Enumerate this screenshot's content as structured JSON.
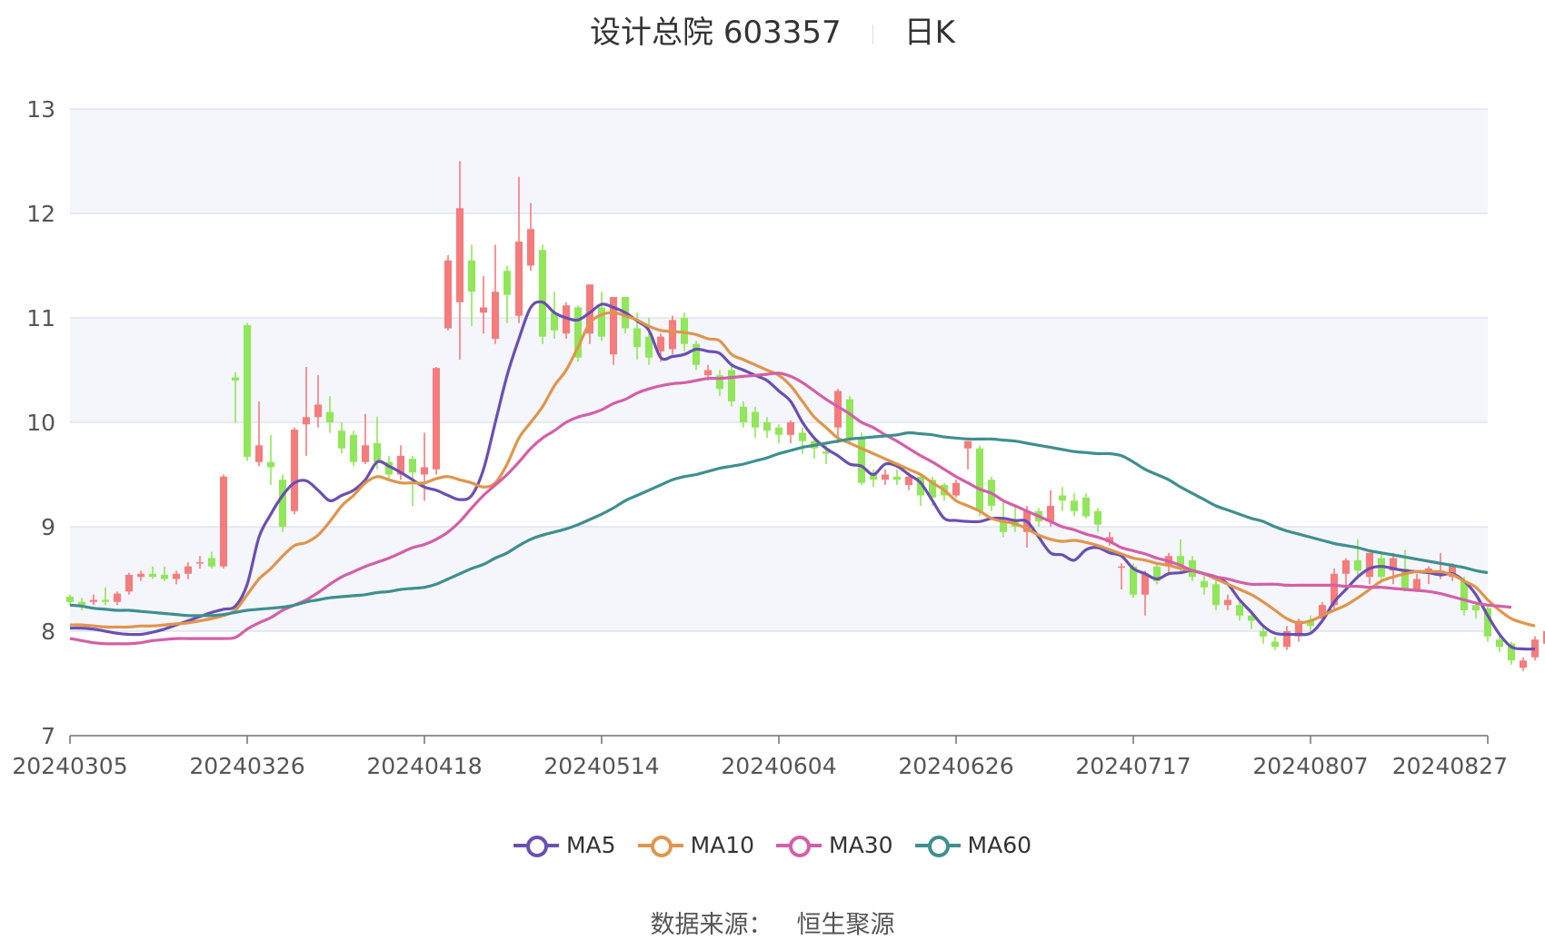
{
  "header": {
    "title": "设计总院 603357",
    "period": "日K"
  },
  "source": {
    "label": "数据来源：",
    "value": "恒生聚源"
  },
  "colors": {
    "up": "#f47c7c",
    "down": "#91e65a",
    "grid": "#dde3f0",
    "band": "#f4f6fb"
  },
  "chart_data": {
    "type": "candlestick",
    "ylim": [
      7,
      13
    ],
    "yticks": [
      "7",
      "8",
      "9",
      "10",
      "11",
      "12",
      "13"
    ],
    "xticks": [
      "20240305",
      "20240326",
      "20240418",
      "20240514",
      "20240604",
      "20240626",
      "20240717",
      "20240807",
      "20240827"
    ],
    "xtick_index": [
      0,
      15,
      30,
      45,
      60,
      75,
      90,
      105,
      120
    ],
    "count": 121,
    "candles": [
      [
        8.33,
        8.28,
        8.35,
        8.25
      ],
      [
        8.28,
        8.25,
        8.32,
        8.2
      ],
      [
        8.28,
        8.3,
        8.35,
        8.25
      ],
      [
        8.3,
        8.28,
        8.42,
        8.25
      ],
      [
        8.28,
        8.36,
        8.38,
        8.25
      ],
      [
        8.38,
        8.54,
        8.56,
        8.35
      ],
      [
        8.52,
        8.55,
        8.58,
        8.48
      ],
      [
        8.55,
        8.52,
        8.62,
        8.5
      ],
      [
        8.54,
        8.5,
        8.62,
        8.48
      ],
      [
        8.5,
        8.55,
        8.58,
        8.45
      ],
      [
        8.55,
        8.62,
        8.66,
        8.5
      ],
      [
        8.65,
        8.66,
        8.72,
        8.6
      ],
      [
        8.7,
        8.62,
        8.76,
        8.6
      ],
      [
        8.62,
        9.48,
        9.5,
        8.6
      ],
      [
        10.43,
        10.4,
        10.48,
        10.0
      ],
      [
        10.93,
        9.67,
        10.95,
        9.63
      ],
      [
        9.62,
        9.78,
        10.2,
        9.58
      ],
      [
        9.62,
        9.57,
        9.88,
        9.4
      ],
      [
        9.45,
        9.0,
        9.5,
        8.95
      ],
      [
        9.15,
        9.93,
        9.95,
        9.12
      ],
      [
        9.98,
        10.05,
        10.53,
        9.68
      ],
      [
        10.05,
        10.17,
        10.45,
        9.95
      ],
      [
        10.1,
        10.0,
        10.25,
        9.9
      ],
      [
        9.92,
        9.75,
        10.0,
        9.7
      ],
      [
        9.88,
        9.62,
        9.92,
        9.58
      ],
      [
        9.62,
        9.78,
        10.08,
        9.6
      ],
      [
        9.8,
        9.62,
        10.05,
        9.55
      ],
      [
        9.62,
        9.5,
        9.68,
        9.45
      ],
      [
        9.5,
        9.68,
        9.78,
        9.45
      ],
      [
        9.65,
        9.52,
        9.68,
        9.2
      ],
      [
        9.5,
        9.57,
        9.9,
        9.25
      ],
      [
        9.55,
        10.52,
        10.53,
        9.5
      ],
      [
        10.9,
        11.55,
        11.6,
        10.88
      ],
      [
        11.15,
        12.05,
        12.5,
        10.6
      ],
      [
        11.55,
        11.25,
        11.7,
        10.92
      ],
      [
        11.05,
        11.1,
        11.4,
        10.85
      ],
      [
        10.8,
        11.25,
        11.7,
        10.75
      ],
      [
        11.45,
        11.22,
        11.5,
        10.95
      ],
      [
        11.02,
        11.73,
        12.35,
        10.95
      ],
      [
        11.5,
        11.85,
        12.1,
        11.45
      ],
      [
        11.65,
        10.82,
        11.7,
        10.75
      ],
      [
        11.05,
        10.88,
        11.25,
        10.8
      ],
      [
        10.85,
        11.12,
        11.15,
        10.8
      ],
      [
        11.1,
        10.62,
        11.12,
        10.58
      ],
      [
        10.85,
        11.32,
        11.32,
        10.75
      ],
      [
        11.1,
        10.82,
        11.25,
        10.78
      ],
      [
        10.65,
        11.2,
        11.2,
        10.55
      ],
      [
        11.2,
        10.9,
        11.2,
        10.85
      ],
      [
        10.9,
        10.72,
        11.05,
        10.6
      ],
      [
        10.82,
        10.62,
        11.0,
        10.55
      ],
      [
        10.68,
        10.82,
        10.85,
        10.58
      ],
      [
        10.7,
        10.98,
        11.02,
        10.65
      ],
      [
        11.0,
        10.75,
        11.05,
        10.68
      ],
      [
        10.75,
        10.55,
        10.78,
        10.5
      ],
      [
        10.45,
        10.5,
        10.55,
        10.4
      ],
      [
        10.45,
        10.32,
        10.5,
        10.25
      ],
      [
        10.5,
        10.2,
        10.55,
        10.15
      ],
      [
        10.15,
        10.0,
        10.2,
        9.95
      ],
      [
        10.1,
        9.95,
        10.15,
        9.85
      ],
      [
        10.0,
        9.92,
        10.05,
        9.85
      ],
      [
        9.95,
        9.88,
        9.98,
        9.8
      ],
      [
        9.88,
        10.0,
        10.02,
        9.8
      ],
      [
        9.9,
        9.82,
        9.95,
        9.7
      ],
      [
        9.82,
        9.75,
        9.85,
        9.65
      ],
      [
        9.72,
        9.7,
        9.78,
        9.6
      ],
      [
        9.95,
        10.3,
        10.32,
        9.8
      ],
      [
        10.22,
        9.85,
        10.25,
        9.8
      ],
      [
        9.85,
        9.42,
        9.9,
        9.4
      ],
      [
        9.5,
        9.45,
        9.55,
        9.38
      ],
      [
        9.45,
        9.5,
        9.55,
        9.4
      ],
      [
        9.48,
        9.45,
        9.55,
        9.4
      ],
      [
        9.4,
        9.48,
        9.52,
        9.35
      ],
      [
        9.48,
        9.3,
        9.5,
        9.2
      ],
      [
        9.45,
        9.28,
        9.48,
        9.2
      ],
      [
        9.4,
        9.3,
        9.42,
        9.25
      ],
      [
        9.3,
        9.42,
        9.45,
        9.28
      ],
      [
        9.75,
        9.82,
        9.82,
        9.55
      ],
      [
        9.75,
        9.15,
        9.78,
        9.1
      ],
      [
        9.45,
        9.2,
        9.48,
        9.15
      ],
      [
        9.05,
        8.95,
        9.25,
        8.9
      ],
      [
        9.05,
        9.0,
        9.2,
        8.95
      ],
      [
        8.95,
        9.15,
        9.2,
        8.8
      ],
      [
        9.15,
        9.05,
        9.18,
        9.0
      ],
      [
        9.05,
        9.2,
        9.35,
        9.0
      ],
      [
        9.3,
        9.25,
        9.38,
        9.15
      ],
      [
        9.25,
        9.15,
        9.32,
        9.1
      ],
      [
        9.28,
        9.1,
        9.32,
        9.08
      ],
      [
        9.15,
        9.02,
        9.18,
        8.95
      ],
      [
        8.85,
        8.9,
        8.95,
        8.82
      ],
      [
        8.62,
        8.62,
        8.65,
        8.4
      ],
      [
        8.62,
        8.35,
        8.65,
        8.32
      ],
      [
        8.35,
        8.55,
        8.58,
        8.15
      ],
      [
        8.62,
        8.48,
        8.65,
        8.45
      ],
      [
        8.62,
        8.72,
        8.75,
        8.55
      ],
      [
        8.72,
        8.6,
        8.88,
        8.55
      ],
      [
        8.68,
        8.52,
        8.72,
        8.48
      ],
      [
        8.48,
        8.42,
        8.55,
        8.35
      ],
      [
        8.45,
        8.25,
        8.5,
        8.2
      ],
      [
        8.25,
        8.3,
        8.35,
        8.2
      ],
      [
        8.25,
        8.15,
        8.3,
        8.1
      ],
      [
        8.15,
        8.1,
        8.2,
        8.02
      ],
      [
        8.0,
        7.95,
        8.05,
        7.88
      ],
      [
        7.9,
        7.85,
        7.95,
        7.82
      ],
      [
        7.85,
        8.0,
        8.05,
        7.82
      ],
      [
        7.95,
        8.1,
        8.12,
        7.9
      ],
      [
        8.1,
        8.05,
        8.15,
        8.0
      ],
      [
        8.12,
        8.25,
        8.28,
        8.08
      ],
      [
        8.25,
        8.55,
        8.6,
        8.2
      ],
      [
        8.55,
        8.68,
        8.7,
        8.4
      ],
      [
        8.68,
        8.58,
        8.88,
        8.5
      ],
      [
        8.52,
        8.75,
        8.75,
        8.45
      ],
      [
        8.7,
        8.52,
        8.75,
        8.48
      ],
      [
        8.58,
        8.7,
        8.75,
        8.45
      ],
      [
        8.6,
        8.4,
        8.78,
        8.38
      ],
      [
        8.4,
        8.5,
        8.55,
        8.38
      ],
      [
        8.55,
        8.6,
        8.62,
        8.45
      ],
      [
        8.55,
        8.58,
        8.75,
        8.5
      ],
      [
        8.52,
        8.62,
        8.65,
        8.48
      ],
      [
        8.48,
        8.2,
        8.52,
        8.15
      ],
      [
        8.25,
        8.2,
        8.28,
        8.12
      ],
      [
        8.22,
        7.95,
        8.25,
        7.9
      ],
      [
        7.92,
        7.85,
        7.95,
        7.8
      ],
      [
        7.88,
        7.72,
        7.9,
        7.68
      ],
      [
        7.65,
        7.72,
        7.75,
        7.62
      ],
      [
        7.75,
        7.92,
        7.95,
        7.72
      ],
      [
        7.88,
        8.0,
        8.02,
        7.85
      ]
    ],
    "series": [
      {
        "name": "MA5",
        "color": "#6b4fb0",
        "values": [
          8.03,
          8.03,
          8.02,
          8.0,
          7.98,
          7.97,
          7.97,
          7.99,
          8.02,
          8.06,
          8.1,
          8.14,
          8.18,
          8.21,
          8.24,
          8.45,
          8.9,
          9.12,
          9.3,
          9.42,
          9.44,
          9.35,
          9.25,
          9.3,
          9.35,
          9.45,
          9.62,
          9.58,
          9.52,
          9.45,
          9.38,
          9.35,
          9.3,
          9.26,
          9.3,
          9.55,
          10.0,
          10.45,
          10.8,
          11.1,
          11.15,
          11.05,
          11.0,
          10.98,
          11.05,
          11.13,
          11.1,
          11.05,
          10.97,
          10.88,
          10.62,
          10.63,
          10.65,
          10.7,
          10.68,
          10.66,
          10.55,
          10.5,
          10.45,
          10.4,
          10.3,
          10.2,
          10.0,
          9.85,
          9.75,
          9.68,
          9.6,
          9.58,
          9.5,
          9.6,
          9.58,
          9.5,
          9.42,
          9.25,
          9.08,
          9.06,
          9.05,
          9.05,
          9.08,
          9.08,
          9.06,
          9.05,
          8.9,
          8.75,
          8.73,
          8.68,
          8.78,
          8.8,
          8.75,
          8.72,
          8.6,
          8.55,
          8.5,
          8.55,
          8.56,
          8.58,
          8.55,
          8.52,
          8.45,
          8.3,
          8.18,
          8.05,
          7.98,
          7.97,
          7.97,
          7.98,
          8.1,
          8.28,
          8.4,
          8.52,
          8.6,
          8.62,
          8.6,
          8.58,
          8.57,
          8.56,
          8.54,
          8.55,
          8.48,
          8.35,
          8.15,
          7.97,
          7.85,
          7.83,
          7.83
        ]
      },
      {
        "name": "MA10",
        "color": "#e0954c",
        "values": [
          8.06,
          8.06,
          8.05,
          8.04,
          8.04,
          8.04,
          8.05,
          8.05,
          8.06,
          8.07,
          8.08,
          8.1,
          8.12,
          8.15,
          8.2,
          8.35,
          8.5,
          8.6,
          8.72,
          8.82,
          8.85,
          8.92,
          9.05,
          9.2,
          9.3,
          9.42,
          9.48,
          9.45,
          9.42,
          9.42,
          9.42,
          9.46,
          9.48,
          9.45,
          9.42,
          9.38,
          9.42,
          9.6,
          9.85,
          10.0,
          10.15,
          10.35,
          10.5,
          10.72,
          10.95,
          11.03,
          11.05,
          11.02,
          10.98,
          10.92,
          10.88,
          10.87,
          10.86,
          10.84,
          10.8,
          10.78,
          10.65,
          10.6,
          10.55,
          10.5,
          10.45,
          10.35,
          10.2,
          10.05,
          9.95,
          9.85,
          9.8,
          9.75,
          9.7,
          9.65,
          9.6,
          9.55,
          9.5,
          9.42,
          9.35,
          9.25,
          9.2,
          9.15,
          9.08,
          9.05,
          9.03,
          8.98,
          8.92,
          8.88,
          8.86,
          8.87,
          8.85,
          8.82,
          8.78,
          8.74,
          8.7,
          8.68,
          8.65,
          8.63,
          8.6,
          8.58,
          8.55,
          8.5,
          8.45,
          8.4,
          8.35,
          8.28,
          8.2,
          8.12,
          8.08,
          8.1,
          8.15,
          8.2,
          8.25,
          8.32,
          8.4,
          8.48,
          8.52,
          8.55,
          8.57,
          8.57,
          8.57,
          8.54,
          8.48,
          8.42,
          8.3,
          8.2,
          8.12,
          8.08,
          8.05
        ]
      },
      {
        "name": "MA30",
        "color": "#d45fa8",
        "values": [
          7.93,
          7.91,
          7.89,
          7.88,
          7.88,
          7.88,
          7.89,
          7.91,
          7.92,
          7.93,
          7.93,
          7.93,
          7.93,
          7.93,
          7.94,
          8.02,
          8.08,
          8.13,
          8.2,
          8.25,
          8.3,
          8.37,
          8.45,
          8.52,
          8.57,
          8.62,
          8.66,
          8.7,
          8.75,
          8.8,
          8.83,
          8.88,
          8.95,
          9.05,
          9.18,
          9.3,
          9.4,
          9.5,
          9.62,
          9.75,
          9.85,
          9.92,
          10.0,
          10.05,
          10.08,
          10.12,
          10.18,
          10.22,
          10.28,
          10.32,
          10.35,
          10.37,
          10.38,
          10.4,
          10.42,
          10.42,
          10.43,
          10.44,
          10.45,
          10.46,
          10.47,
          10.44,
          10.38,
          10.3,
          10.22,
          10.15,
          10.08,
          10.0,
          9.95,
          9.88,
          9.82,
          9.75,
          9.68,
          9.62,
          9.55,
          9.48,
          9.42,
          9.36,
          9.32,
          9.25,
          9.2,
          9.15,
          9.1,
          9.05,
          9.0,
          8.97,
          8.93,
          8.9,
          8.86,
          8.8,
          8.77,
          8.74,
          8.7,
          8.67,
          8.63,
          8.58,
          8.55,
          8.52,
          8.5,
          8.47,
          8.45,
          8.45,
          8.45,
          8.44,
          8.44,
          8.44,
          8.44,
          8.44,
          8.43,
          8.43,
          8.42,
          8.42,
          8.41,
          8.4,
          8.39,
          8.38,
          8.36,
          8.33,
          8.3,
          8.27,
          8.25,
          8.24,
          8.23
        ]
      },
      {
        "name": "MA60",
        "color": "#3e8f8f",
        "values": [
          8.25,
          8.24,
          8.22,
          8.21,
          8.2,
          8.2,
          8.19,
          8.18,
          8.17,
          8.16,
          8.15,
          8.15,
          8.15,
          8.16,
          8.18,
          8.2,
          8.21,
          8.22,
          8.23,
          8.25,
          8.28,
          8.3,
          8.32,
          8.33,
          8.34,
          8.35,
          8.37,
          8.38,
          8.4,
          8.41,
          8.42,
          8.45,
          8.5,
          8.55,
          8.6,
          8.64,
          8.7,
          8.75,
          8.82,
          8.88,
          8.92,
          8.95,
          8.98,
          9.02,
          9.07,
          9.12,
          9.18,
          9.25,
          9.3,
          9.35,
          9.4,
          9.45,
          9.48,
          9.5,
          9.53,
          9.56,
          9.58,
          9.6,
          9.63,
          9.66,
          9.7,
          9.73,
          9.76,
          9.78,
          9.8,
          9.82,
          9.84,
          9.85,
          9.86,
          9.87,
          9.88,
          9.9,
          9.89,
          9.88,
          9.86,
          9.85,
          9.84,
          9.84,
          9.84,
          9.83,
          9.82,
          9.8,
          9.78,
          9.76,
          9.74,
          9.72,
          9.71,
          9.7,
          9.7,
          9.68,
          9.62,
          9.55,
          9.5,
          9.45,
          9.38,
          9.32,
          9.26,
          9.2,
          9.16,
          9.12,
          9.08,
          9.05,
          9.0,
          8.96,
          8.93,
          8.9,
          8.87,
          8.84,
          8.82,
          8.8,
          8.77,
          8.75,
          8.73,
          8.71,
          8.69,
          8.67,
          8.65,
          8.63,
          8.61,
          8.58,
          8.56
        ]
      }
    ]
  }
}
